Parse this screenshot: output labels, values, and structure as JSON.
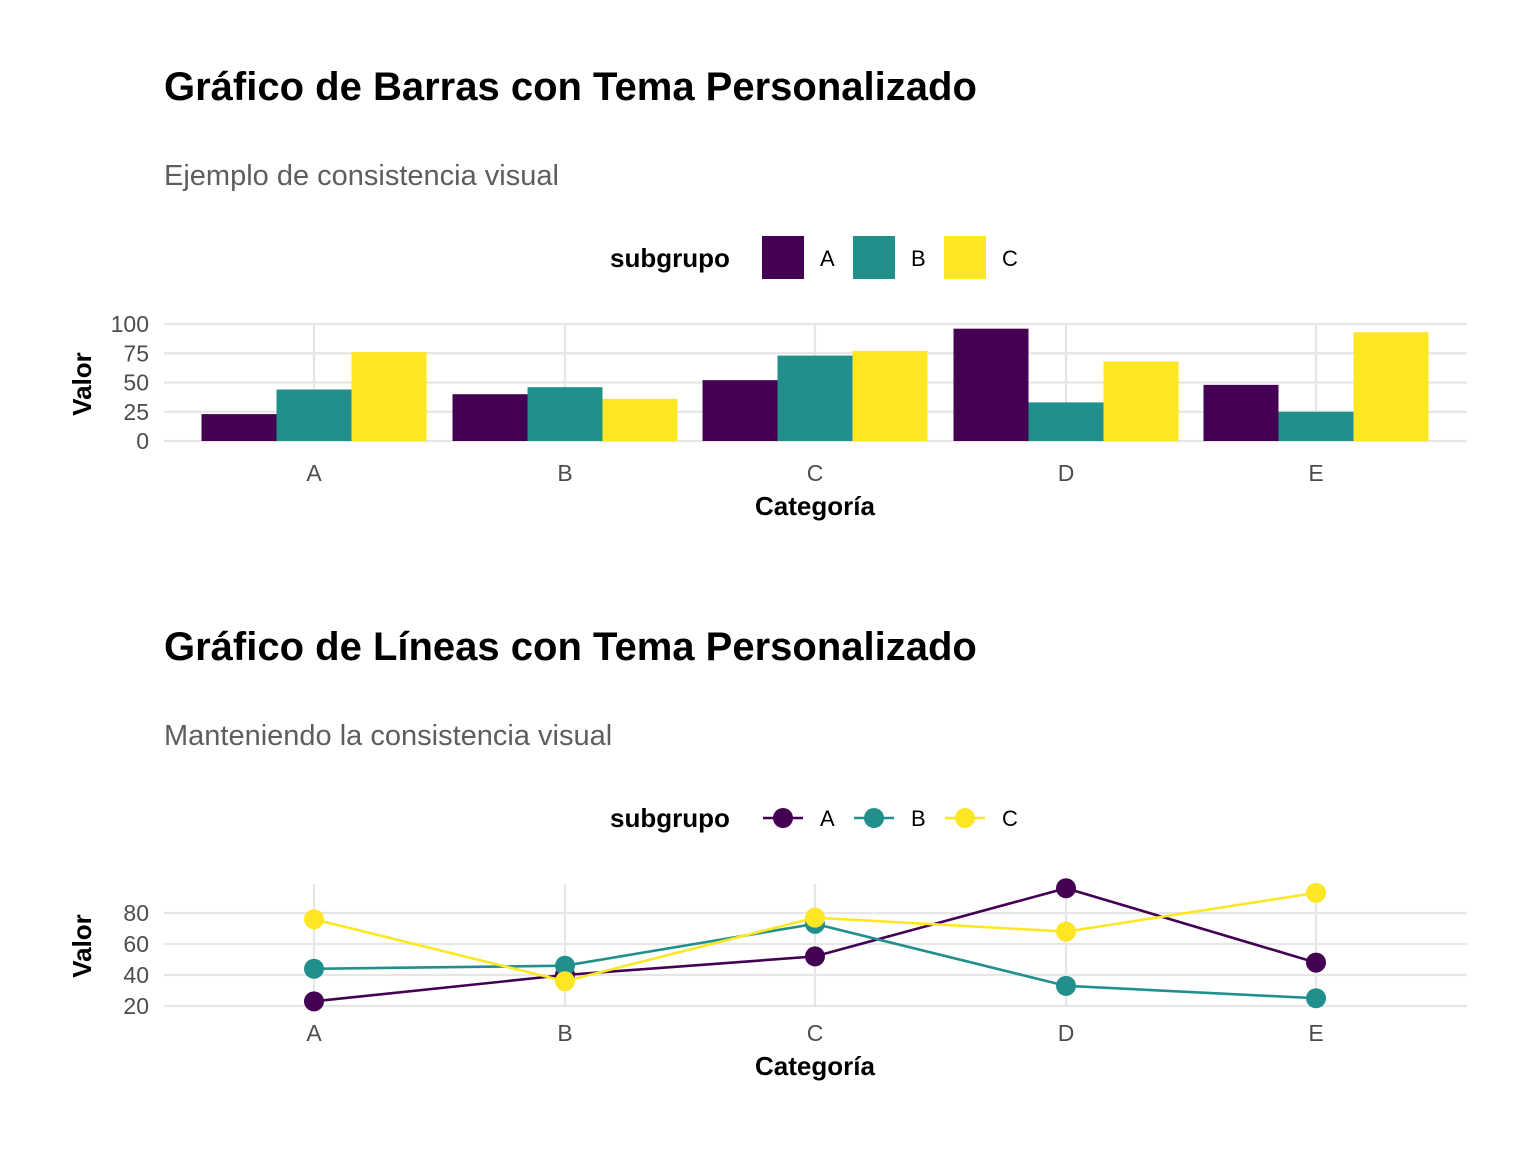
{
  "colors": {
    "A": "#440154",
    "B": "#21908C",
    "C": "#FDE725"
  },
  "chart_data": [
    {
      "type": "bar",
      "title": "Gráfico de Barras con Tema Personalizado",
      "subtitle": "Ejemplo de consistencia visual",
      "xlabel": "Categoría",
      "ylabel": "Valor",
      "legend_title": "subgrupo",
      "legend_position": "top",
      "grid": true,
      "ylim": [
        0,
        100
      ],
      "yticks": [
        0,
        25,
        50,
        75,
        100
      ],
      "categories": [
        "A",
        "B",
        "C",
        "D",
        "E"
      ],
      "series": [
        {
          "name": "A",
          "values": [
            23,
            40,
            52,
            96,
            48
          ]
        },
        {
          "name": "B",
          "values": [
            44,
            46,
            73,
            33,
            25
          ]
        },
        {
          "name": "C",
          "values": [
            76,
            36,
            77,
            68,
            93
          ]
        }
      ]
    },
    {
      "type": "line",
      "title": "Gráfico de Líneas con Tema Personalizado",
      "subtitle": "Manteniendo la consistencia visual",
      "xlabel": "Categoría",
      "ylabel": "Valor",
      "legend_title": "subgrupo",
      "legend_position": "top",
      "grid": true,
      "ylim": [
        20,
        96
      ],
      "yticks": [
        20,
        40,
        60,
        80
      ],
      "categories": [
        "A",
        "B",
        "C",
        "D",
        "E"
      ],
      "series": [
        {
          "name": "A",
          "values": [
            23,
            40,
            52,
            96,
            48
          ]
        },
        {
          "name": "B",
          "values": [
            44,
            46,
            73,
            33,
            25
          ]
        },
        {
          "name": "C",
          "values": [
            76,
            36,
            77,
            68,
            93
          ]
        }
      ]
    }
  ]
}
